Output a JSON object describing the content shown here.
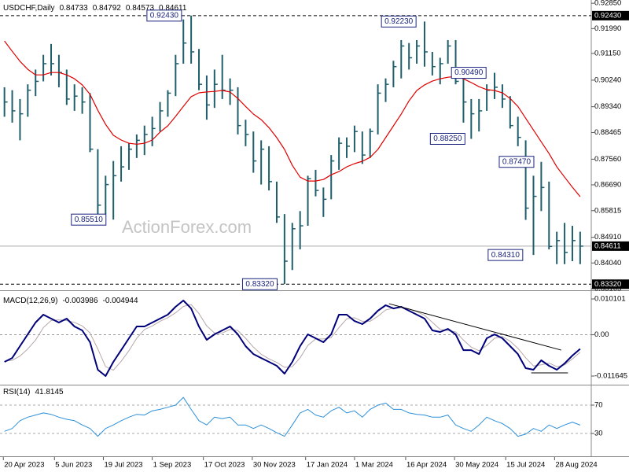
{
  "chart_data": [
    {
      "type": "ohlc",
      "title": "USDCHF,Daily",
      "last_bar": {
        "open": 0.84733,
        "high": 0.84792,
        "low": 0.84573,
        "close": 0.84611
      },
      "watermark": "ActionForex.com",
      "color": "#1f5f6b",
      "x": [
        "2023-04-21",
        "2023-04-28",
        "2023-05-05",
        "2023-05-12",
        "2023-05-19",
        "2023-05-26",
        "2023-06-02",
        "2023-06-09",
        "2023-06-16",
        "2023-06-23",
        "2023-06-30",
        "2023-07-07",
        "2023-07-14",
        "2023-07-21",
        "2023-07-28",
        "2023-08-04",
        "2023-08-11",
        "2023-08-18",
        "2023-08-25",
        "2023-09-01",
        "2023-09-08",
        "2023-09-15",
        "2023-09-22",
        "2023-09-29",
        "2023-10-06",
        "2023-10-13",
        "2023-10-20",
        "2023-10-27",
        "2023-11-03",
        "2023-11-10",
        "2023-11-17",
        "2023-11-24",
        "2023-12-01",
        "2023-12-08",
        "2023-12-15",
        "2023-12-22",
        "2023-12-29",
        "2024-01-05",
        "2024-01-12",
        "2024-01-19",
        "2024-01-26",
        "2024-02-02",
        "2024-02-09",
        "2024-02-16",
        "2024-02-23",
        "2024-03-01",
        "2024-03-08",
        "2024-03-15",
        "2024-03-22",
        "2024-03-29",
        "2024-04-05",
        "2024-04-12",
        "2024-04-19",
        "2024-04-26",
        "2024-05-03",
        "2024-05-10",
        "2024-05-17",
        "2024-05-24",
        "2024-05-31",
        "2024-06-07",
        "2024-06-14",
        "2024-06-21",
        "2024-06-28",
        "2024-07-05",
        "2024-07-12",
        "2024-07-19",
        "2024-07-26",
        "2024-08-02",
        "2024-08-09",
        "2024-08-16",
        "2024-08-23",
        "2024-08-30",
        "2024-09-06",
        "2024-09-13",
        "2024-09-20"
      ],
      "high": [
        0.9,
        0.899,
        0.896,
        0.901,
        0.906,
        0.911,
        0.9147,
        0.911,
        0.906,
        0.901,
        0.9,
        0.898,
        0.879,
        0.87,
        0.875,
        0.88,
        0.881,
        0.884,
        0.887,
        0.89,
        0.895,
        0.899,
        0.911,
        0.923,
        0.9243,
        0.913,
        0.904,
        0.906,
        0.911,
        0.903,
        0.9,
        0.889,
        0.885,
        0.882,
        0.88,
        0.868,
        0.857,
        0.854,
        0.858,
        0.87,
        0.872,
        0.866,
        0.877,
        0.883,
        0.883,
        0.887,
        0.885,
        0.886,
        0.901,
        0.903,
        0.909,
        0.916,
        0.915,
        0.916,
        0.9223,
        0.912,
        0.91,
        0.916,
        0.916,
        0.903,
        0.896,
        0.896,
        0.901,
        0.9049,
        0.901,
        0.897,
        0.89,
        0.882,
        0.87,
        0.8747,
        0.868,
        0.851,
        0.854,
        0.853,
        0.851
      ],
      "low": [
        0.89,
        0.888,
        0.882,
        0.89,
        0.897,
        0.902,
        0.904,
        0.9,
        0.894,
        0.892,
        0.891,
        0.878,
        0.856,
        0.857,
        0.8551,
        0.868,
        0.872,
        0.876,
        0.877,
        0.88,
        0.885,
        0.89,
        0.897,
        0.908,
        0.908,
        0.899,
        0.889,
        0.893,
        0.896,
        0.894,
        0.884,
        0.88,
        0.871,
        0.867,
        0.865,
        0.854,
        0.8332,
        0.838,
        0.845,
        0.853,
        0.863,
        0.856,
        0.862,
        0.872,
        0.876,
        0.878,
        0.874,
        0.876,
        0.884,
        0.895,
        0.9,
        0.903,
        0.906,
        0.908,
        0.907,
        0.904,
        0.901,
        0.908,
        0.901,
        0.888,
        0.8825,
        0.885,
        0.892,
        0.896,
        0.893,
        0.886,
        0.88,
        0.855,
        0.8431,
        0.858,
        0.845,
        0.84,
        0.84,
        0.841,
        0.84
      ],
      "close": [
        0.895,
        0.892,
        0.891,
        0.899,
        0.902,
        0.908,
        0.908,
        0.905,
        0.896,
        0.897,
        0.895,
        0.879,
        0.86,
        0.867,
        0.87,
        0.873,
        0.879,
        0.882,
        0.884,
        0.886,
        0.892,
        0.898,
        0.908,
        0.915,
        0.912,
        0.901,
        0.894,
        0.901,
        0.899,
        0.899,
        0.887,
        0.884,
        0.875,
        0.879,
        0.868,
        0.856,
        0.841,
        0.852,
        0.853,
        0.869,
        0.865,
        0.862,
        0.875,
        0.881,
        0.88,
        0.885,
        0.877,
        0.885,
        0.898,
        0.901,
        0.907,
        0.914,
        0.91,
        0.914,
        0.912,
        0.907,
        0.908,
        0.914,
        0.902,
        0.895,
        0.891,
        0.892,
        0.899,
        0.9,
        0.896,
        0.887,
        0.883,
        0.859,
        0.863,
        0.866,
        0.846,
        0.848,
        0.844,
        0.848,
        0.8461
      ],
      "moving_average": {
        "color": "#e00000",
        "values": [
          0.9157,
          0.9122,
          0.9088,
          0.9061,
          0.9042,
          0.9042,
          0.905,
          0.905,
          0.9042,
          0.9029,
          0.9008,
          0.8976,
          0.8922,
          0.8874,
          0.8837,
          0.8821,
          0.881,
          0.8807,
          0.881,
          0.8821,
          0.8848,
          0.8869,
          0.8901,
          0.8935,
          0.8968,
          0.8981,
          0.8984,
          0.8986,
          0.8989,
          0.8984,
          0.8962,
          0.8935,
          0.8909,
          0.889,
          0.8863,
          0.8829,
          0.8789,
          0.8735,
          0.8695,
          0.8682,
          0.8682,
          0.8687,
          0.8703,
          0.8714,
          0.873,
          0.8741,
          0.8749,
          0.8762,
          0.8789,
          0.8829,
          0.8869,
          0.8909,
          0.8954,
          0.8989,
          0.9008,
          0.9021,
          0.9029,
          0.9034,
          0.9037,
          0.9029,
          0.9016,
          0.9002,
          0.8992,
          0.8989,
          0.8981,
          0.8962,
          0.8935,
          0.8895,
          0.8855,
          0.8815,
          0.8775,
          0.873,
          0.8695,
          0.8661,
          0.8629
        ]
      },
      "price_lines": [
        {
          "value": 0.9243,
          "label": "0.92430"
        },
        {
          "value": 0.8332,
          "label": "0.83320"
        }
      ],
      "annotations": [
        {
          "x": "2023-10-03",
          "value": 0.9243,
          "label": "0.92430"
        },
        {
          "x": "2024-05-01",
          "value": 0.9223,
          "label": "0.92230"
        },
        {
          "x": "2024-07-03",
          "value": 0.9049,
          "label": "0.90490"
        },
        {
          "x": "2024-06-14",
          "value": 0.8825,
          "label": "0.88250"
        },
        {
          "x": "2024-08-15",
          "value": 0.8747,
          "label": "0.87470"
        },
        {
          "x": "2023-07-27",
          "value": 0.8551,
          "label": "0.85510"
        },
        {
          "x": "2024-08-05",
          "value": 0.8431,
          "label": "0.84310"
        },
        {
          "x": "2023-12-28",
          "value": 0.8332,
          "label": "0.83320"
        }
      ],
      "ylim": [
        0.8314,
        0.9296
      ],
      "yticks": [
        {
          "value": 0.9285,
          "label": "0.92850"
        },
        {
          "value": 0.9199,
          "label": "0.91990"
        },
        {
          "value": 0.9115,
          "label": "0.91150"
        },
        {
          "value": 0.9024,
          "label": "0.90240"
        },
        {
          "value": 0.8934,
          "label": "0.89340"
        },
        0.88465,
        {
          "value": 0.8756,
          "label": "0.87560"
        },
        {
          "value": 0.8669,
          "label": "0.86690"
        },
        0.85815,
        {
          "value": 0.8491,
          "label": "0.84910"
        },
        {
          "value": 0.8404,
          "label": "0.84040"
        },
        0.83165
      ],
      "xlim": [
        "2023-04-17",
        "2024-09-30"
      ],
      "xticks": [
        {
          "value": "2023-04-20",
          "label": "20 Apr 2023"
        },
        {
          "value": "2023-06-05",
          "label": "5 Jun 2023"
        },
        {
          "value": "2023-07-19",
          "label": "19 Jul 2023"
        },
        {
          "value": "2023-09-01",
          "label": "1 Sep 2023"
        },
        {
          "value": "2023-10-17",
          "label": "17 Oct 2023"
        },
        {
          "value": "2023-11-30",
          "label": "30 Nov 2023"
        },
        {
          "value": "2024-01-17",
          "label": "17 Jan 2024"
        },
        {
          "value": "2024-03-01",
          "label": "1 Mar 2024"
        },
        {
          "value": "2024-04-16",
          "label": "16 Apr 2024"
        },
        {
          "value": "2024-05-30",
          "label": "30 May 2024"
        },
        {
          "value": "2024-07-15",
          "label": "15 Jul 2024"
        },
        {
          "value": "2024-08-28",
          "label": "28 Aug 2024"
        }
      ]
    },
    {
      "type": "macd",
      "title": "MACD(12,26,9)",
      "series": [
        {
          "color": "#00007a",
          "values": [
            -0.00765,
            -0.00655,
            -0.00321,
            0.00011,
            0.00344,
            0.00566,
            0.00455,
            0.00344,
            0.00455,
            0.00233,
            0.00122,
            -0.00211,
            -0.00987,
            -0.01165,
            -0.00765,
            -0.00433,
            -0.001,
            0.00233,
            0.00233,
            0.00344,
            0.00455,
            0.00566,
            0.00788,
            0.00965,
            0.00743,
            0.00233,
            -0.00144,
            0.00011,
            0.00122,
            0.00233,
            0.00011,
            -0.00321,
            -0.00544,
            -0.00655,
            -0.00765,
            -0.00876,
            -0.01098,
            -0.00765,
            -0.00321,
            0.00011,
            -0.001,
            -0.00211,
            0.00011,
            0.00566,
            0.00566,
            0.00388,
            0.003,
            0.00455,
            0.00677,
            0.00832,
            0.00743,
            0.00788,
            0.00677,
            0.00566,
            0.00455,
            0.00122,
            0.00078,
            0.00166,
            0.00011,
            -0.00433,
            -0.00433,
            -0.00544,
            -0.001,
            0.00011,
            -0.001,
            -0.00321,
            -0.00544,
            -0.00943,
            -0.00987,
            -0.00721,
            -0.00876,
            -0.00987,
            -0.0081,
            -0.00588,
            -0.003986
          ]
        },
        {
          "color": "#b8a8a8",
          "values": [
            -0.0075,
            -0.0072,
            -0.006,
            -0.004,
            -0.0015,
            0.002,
            0.004,
            0.0042,
            0.004,
            0.0035,
            0.0025,
            0.0005,
            -0.004,
            -0.009,
            -0.01,
            -0.0075,
            -0.0045,
            -0.001,
            0.0015,
            0.0025,
            0.0038,
            0.0048,
            0.0062,
            0.008,
            0.0085,
            0.006,
            0.0025,
            0.0005,
            0.0005,
            0.0015,
            0.0012,
            -0.001,
            -0.0035,
            -0.0055,
            -0.0068,
            -0.0078,
            -0.0092,
            -0.009,
            -0.0065,
            -0.003,
            -0.0012,
            -0.0012,
            -0.0008,
            0.002,
            0.0045,
            0.0048,
            0.0038,
            0.0038,
            0.0052,
            0.007,
            0.0075,
            0.0077,
            0.0073,
            0.0065,
            0.0055,
            0.0035,
            0.0015,
            0.0012,
            0.0008,
            -0.0015,
            -0.0035,
            -0.0045,
            -0.003,
            -0.001,
            -0.0005,
            -0.0018,
            -0.0038,
            -0.0065,
            -0.0088,
            -0.0085,
            -0.008,
            -0.009,
            -0.0085,
            -0.0068,
            -0.004944
          ]
        }
      ],
      "trend_lines": [
        {
          "x": [
            "2024-04-01",
            "2024-09-03"
          ],
          "values": [
            0.00876,
            -0.00433
          ]
        },
        {
          "x": [
            "2024-08-07",
            "2024-09-09"
          ],
          "values": [
            -0.01076,
            -0.01076
          ]
        }
      ],
      "zero_line": true,
      "ylim": [
        -0.01386,
        0.01188
      ],
      "yticks": [
        0.010101,
        {
          "value": 0,
          "label": "0.00"
        },
        -0.011645
      ]
    },
    {
      "type": "line",
      "title": "RSI(14)",
      "series": [
        {
          "color": "#2b8fd8",
          "values": [
            33,
            37,
            48,
            53,
            56,
            59,
            57,
            53,
            50,
            48,
            42,
            37,
            26,
            37,
            42,
            48,
            53,
            57,
            56,
            62,
            64,
            67,
            70,
            81,
            64,
            48,
            42,
            53,
            51,
            53,
            42,
            42,
            37,
            42,
            37,
            31,
            26,
            42,
            59,
            64,
            56,
            53,
            62,
            67,
            59,
            62,
            53,
            64,
            70,
            73,
            64,
            64,
            59,
            57,
            56,
            53,
            53,
            56,
            42,
            37,
            33,
            42,
            53,
            48,
            44,
            37,
            26,
            29,
            37,
            33,
            42,
            37,
            42,
            46,
            41.8145
          ]
        }
      ],
      "grid": true,
      "ylim": [
        0,
        100
      ],
      "yticks": [
        30,
        70
      ]
    }
  ]
}
